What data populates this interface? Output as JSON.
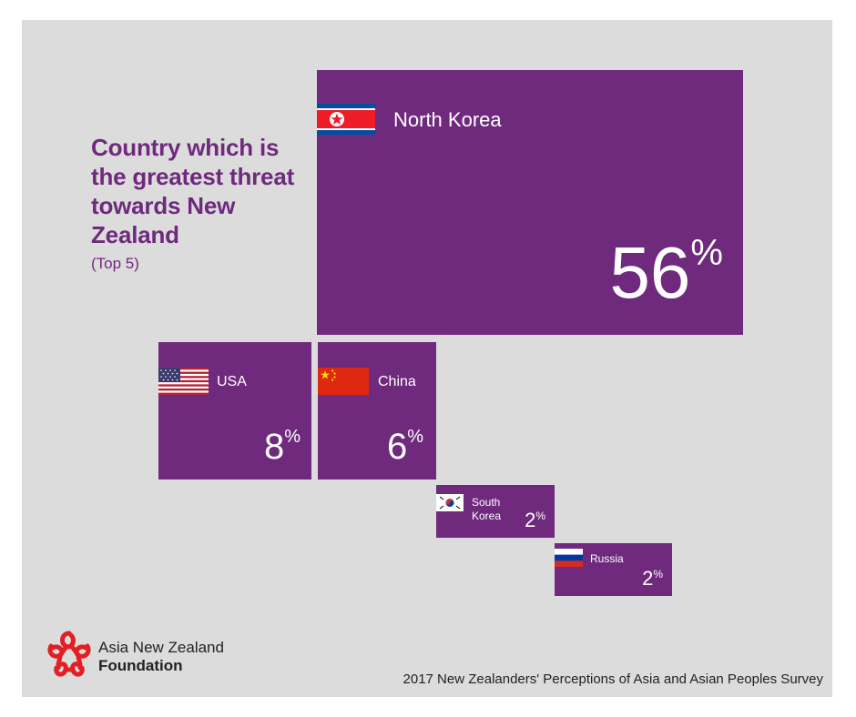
{
  "title": "Country which is the greatest threat towards New Zealand",
  "subtitle": "(Top 5)",
  "chart_data": {
    "type": "treemap",
    "title": "Country which is the greatest threat towards New Zealand",
    "subtitle": "(Top 5)",
    "unit": "%",
    "categories": [
      "North Korea",
      "USA",
      "China",
      "South Korea",
      "Russia"
    ],
    "values": [
      56,
      8,
      6,
      2,
      2
    ]
  },
  "tiles": [
    {
      "name": "North Korea",
      "name_lines": [
        "North Korea"
      ],
      "value": "56",
      "unit": "%",
      "flag": "north-korea-flag"
    },
    {
      "name": "USA",
      "name_lines": [
        "USA"
      ],
      "value": "8",
      "unit": "%",
      "flag": "usa-flag"
    },
    {
      "name": "China",
      "name_lines": [
        "China"
      ],
      "value": "6",
      "unit": "%",
      "flag": "china-flag"
    },
    {
      "name": "South Korea",
      "name_lines": [
        "South",
        "Korea"
      ],
      "value": "2",
      "unit": "%",
      "flag": "south-korea-flag"
    },
    {
      "name": "Russia",
      "name_lines": [
        "Russia"
      ],
      "value": "2",
      "unit": "%",
      "flag": "russia-flag"
    }
  ],
  "logo": {
    "line1": "Asia New Zealand",
    "line2": "Foundation",
    "icon": "asia-nz-foundation-logo"
  },
  "source": "2017 New Zealanders' Perceptions of Asia and Asian Peoples Survey",
  "colors": {
    "tile": "#6f2a7d",
    "title": "#6f2a7d",
    "background": "#dcdcdc",
    "logo": "#e31e24"
  }
}
